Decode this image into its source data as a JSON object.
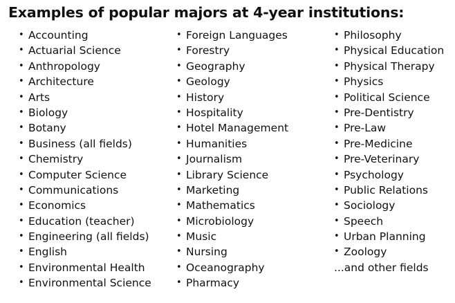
{
  "title": "Examples of popular majors at 4-year institutions:",
  "bullet": "•",
  "columns": [
    {
      "items": [
        "Accounting",
        "Actuarial Science",
        "Anthropology",
        "Architecture",
        "Arts",
        "Biology",
        "Botany",
        "Business (all fields)",
        "Chemistry",
        "Computer Science",
        "Communications",
        "Economics",
        "Education (teacher)",
        "Engineering (all fields)",
        "English",
        "Environmental Health",
        "Environmental Science"
      ]
    },
    {
      "items": [
        "Foreign Languages",
        "Forestry",
        "Geography",
        "Geology",
        "History",
        "Hospitality",
        "Hotel Management",
        "Humanities",
        "Journalism",
        "Library Science",
        "Marketing",
        "Mathematics",
        "Microbiology",
        "Music",
        "Nursing",
        "Oceanography",
        "Pharmacy"
      ]
    },
    {
      "items": [
        "Philosophy",
        "Physical Education",
        "Physical Therapy",
        "Physics",
        "Political Science",
        "Pre-Dentistry",
        "Pre-Law",
        "Pre-Medicine",
        "Pre-Veterinary",
        "Psychology",
        "Public Relations",
        "Sociology",
        "Speech",
        "Urban Planning",
        "Zoology"
      ],
      "trailing_text": "...and other fields"
    }
  ]
}
